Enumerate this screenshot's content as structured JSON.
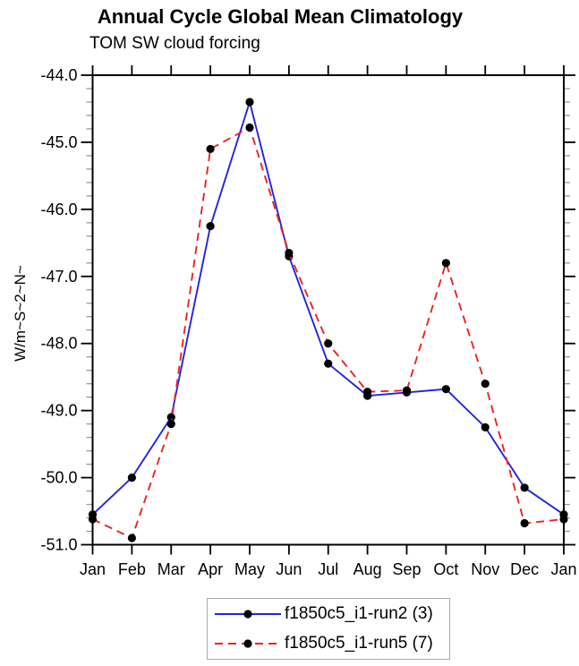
{
  "page": {
    "background_color": "#ffffff"
  },
  "chart_data": {
    "type": "line",
    "title": "Annual Cycle Global Mean Climatology",
    "subtitle": "TOM SW cloud forcing",
    "ylabel": "W/m~S~2~N~",
    "xlabel": "",
    "x_categories": [
      "Jan",
      "Feb",
      "Mar",
      "Apr",
      "May",
      "Jun",
      "Jul",
      "Aug",
      "Sep",
      "Oct",
      "Nov",
      "Dec",
      "Jan"
    ],
    "ylim": [
      -51.0,
      -44.0
    ],
    "y_major_step": 1.0,
    "y_minor_step": 0.2,
    "y_tick_labels": [
      "-44.0",
      "-45.0",
      "-46.0",
      "-47.0",
      "-48.0",
      "-49.0",
      "-50.0",
      "-51.0"
    ],
    "grid": false,
    "legend_position": "bottom-center",
    "series": [
      {
        "name": "f1850c5_i1-run2 (3)",
        "color": "#2424dd",
        "line_style": "solid",
        "marker": "filled-circle",
        "marker_color": "#000000",
        "values": [
          -50.55,
          -50.0,
          -49.1,
          -46.25,
          -44.4,
          -46.7,
          -48.3,
          -48.78,
          -48.73,
          -48.68,
          -49.25,
          -50.15,
          -50.55
        ]
      },
      {
        "name": "f1850c5_i1-run5 (7)",
        "color": "#ee2222",
        "line_style": "dashed",
        "marker": "filled-circle",
        "marker_color": "#000000",
        "values": [
          -50.62,
          -50.9,
          -49.2,
          -45.1,
          -44.78,
          -46.65,
          -48.0,
          -48.72,
          -48.7,
          -46.8,
          -48.6,
          -50.68,
          -50.62
        ]
      }
    ]
  },
  "colors": {
    "axis": "#000000",
    "major_tick": "#000000",
    "minor_tick": "#999999",
    "tick_label": "#000000",
    "legend_border": "#a9a9a9"
  }
}
